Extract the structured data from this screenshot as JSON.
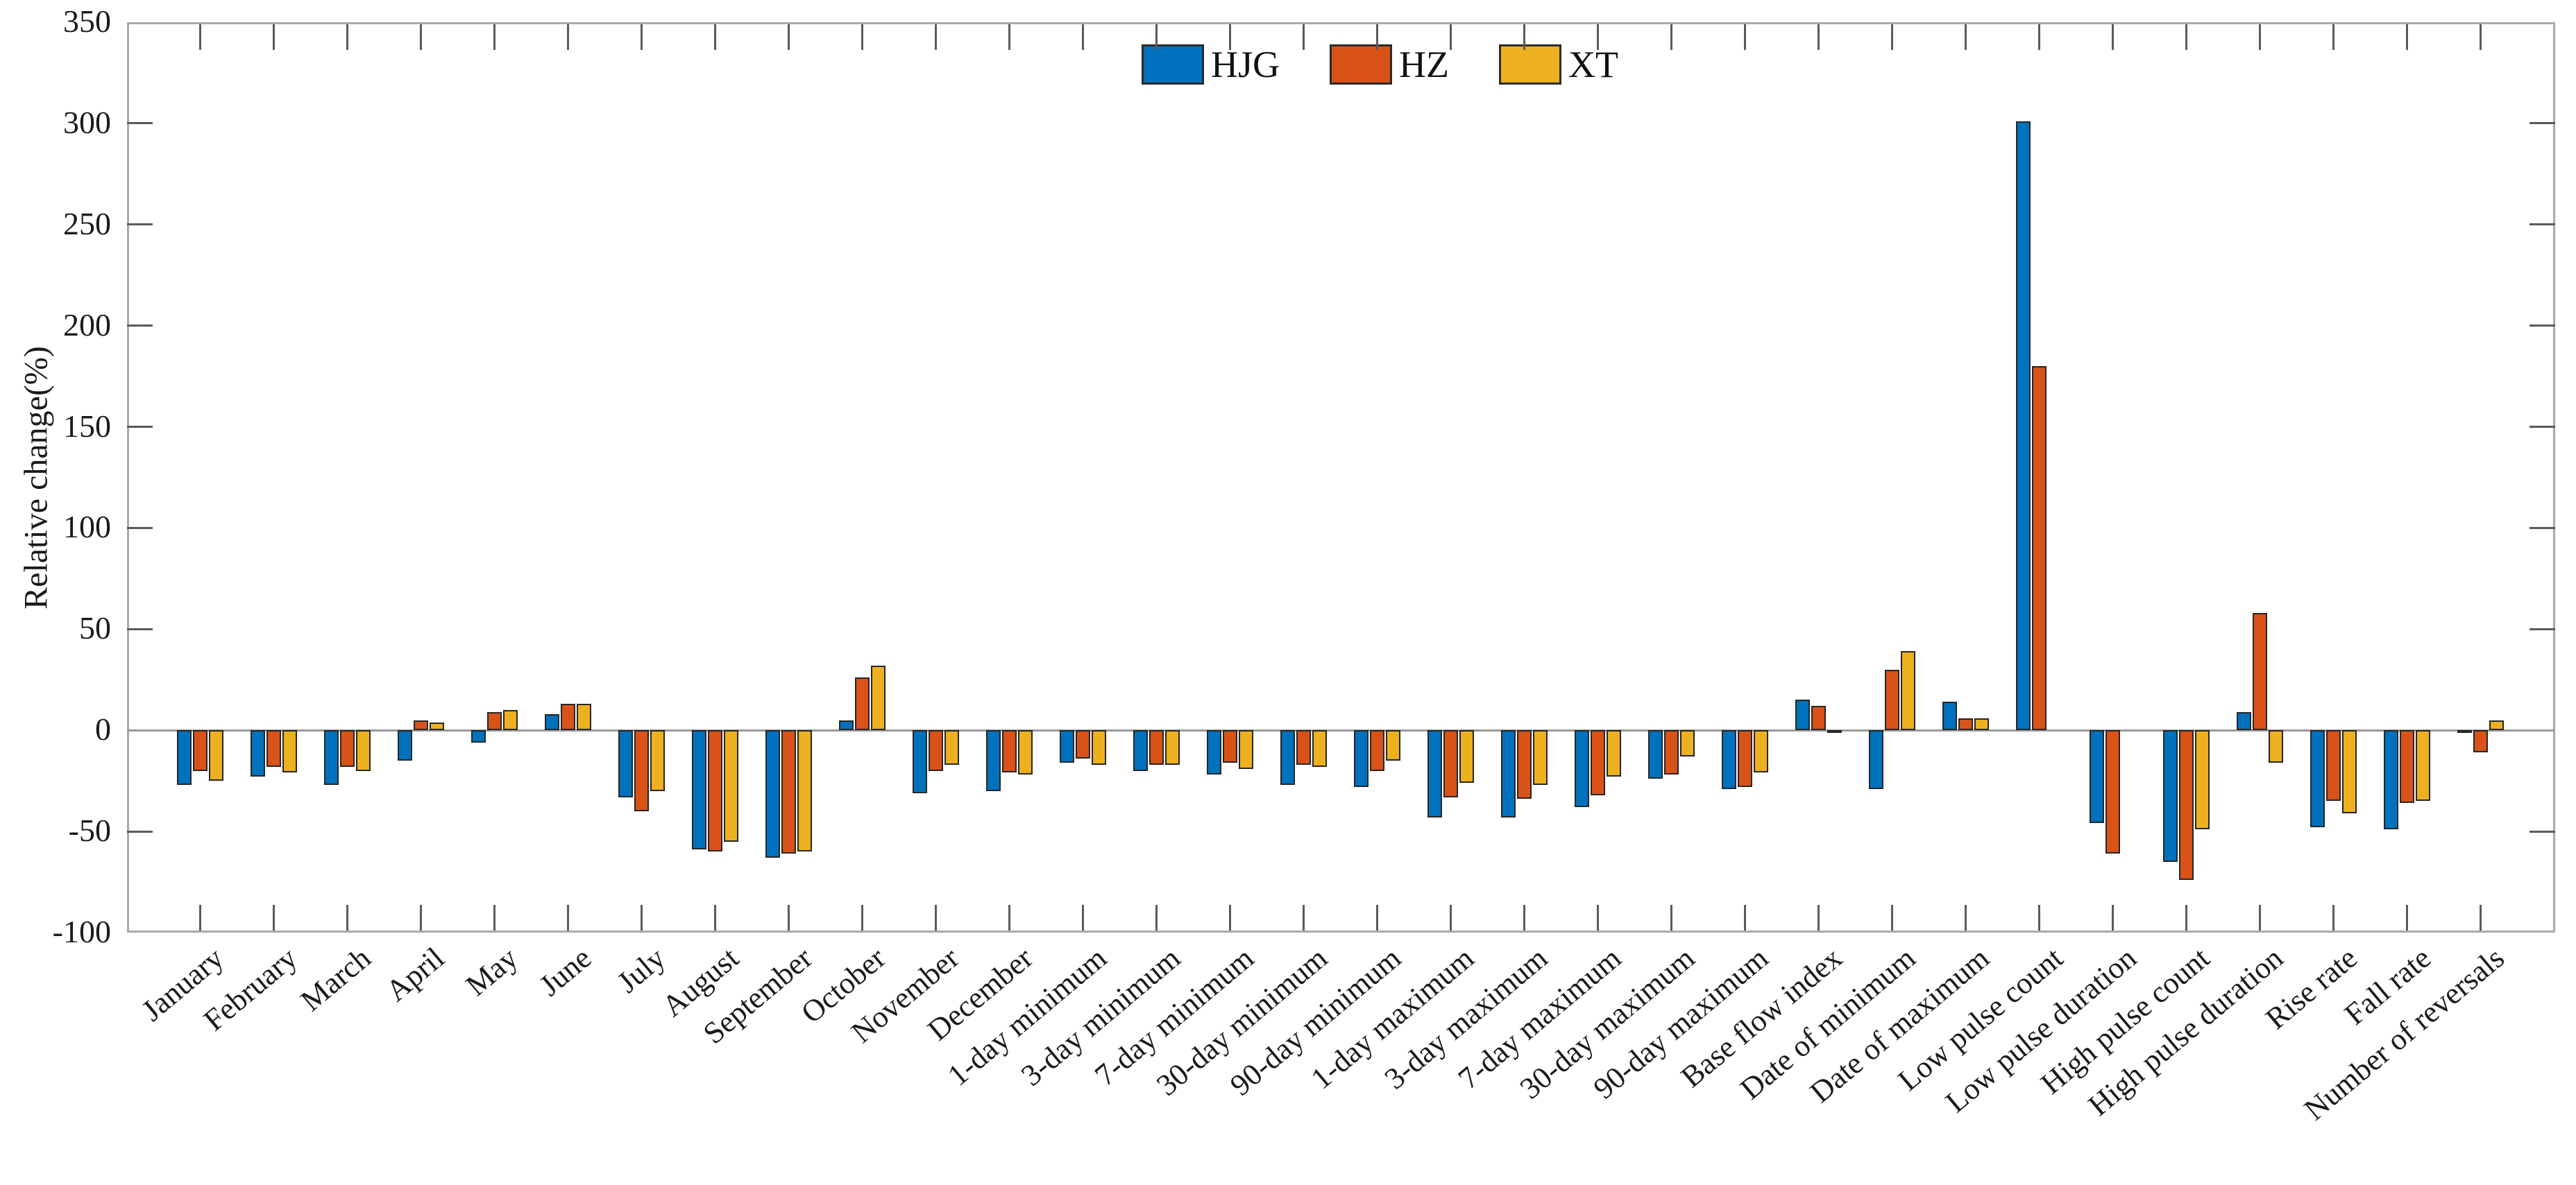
{
  "chart_data": {
    "type": "bar",
    "title": "",
    "ylabel": "Relative change(%)",
    "ylim": [
      -100,
      350
    ],
    "yticks": [
      350,
      300,
      250,
      200,
      150,
      100,
      50,
      0,
      -50,
      -100
    ],
    "grid": false,
    "zero_line": true,
    "legend_position": "top-center",
    "categories": [
      "January",
      "February",
      "March",
      "April",
      "May",
      "June",
      "July",
      "August",
      "September",
      "October",
      "November",
      "December",
      "1-day minimum",
      "3-day minimum",
      "7-day minimum",
      "30-day minimum",
      "90-day minimum",
      "1-day maximum",
      "3-day maximum",
      "7-day maximum",
      "30-day maximum",
      "90-day maximum",
      "Base flow index",
      "Date of minimum",
      "Date of maximum",
      "Low pulse count",
      "Low pulse duration",
      "High pulse count",
      "High pulse duration",
      "Rise rate",
      "Fall rate",
      "Number of reversals"
    ],
    "series": [
      {
        "name": "HJG",
        "color": "#0072BD",
        "values": [
          -27,
          -23,
          -27,
          -15,
          -6,
          8,
          -33,
          -59,
          -63,
          5,
          -31,
          -30,
          -16,
          -20,
          -22,
          -27,
          -28,
          -43,
          -43,
          -38,
          -24,
          -29,
          15,
          -29,
          14,
          301,
          -46,
          -65,
          9,
          -48,
          -49,
          -1
        ]
      },
      {
        "name": "HZ",
        "color": "#D95319",
        "values": [
          -20,
          -18,
          -18,
          5,
          9,
          13,
          -40,
          -60,
          -61,
          26,
          -20,
          -21,
          -14,
          -17,
          -16,
          -17,
          -20,
          -33,
          -34,
          -32,
          -22,
          -28,
          12,
          30,
          6,
          180,
          -61,
          -74,
          58,
          -35,
          -36,
          -11
        ]
      },
      {
        "name": "XT",
        "color": "#EDB120",
        "values": [
          -25,
          -21,
          -20,
          4,
          10,
          13,
          -30,
          -55,
          -60,
          32,
          -17,
          -22,
          -17,
          -17,
          -19,
          -18,
          -15,
          -26,
          -27,
          -23,
          -13,
          -21,
          -1,
          39,
          6,
          0,
          0,
          -49,
          -16,
          -41,
          -35,
          5
        ]
      }
    ]
  }
}
